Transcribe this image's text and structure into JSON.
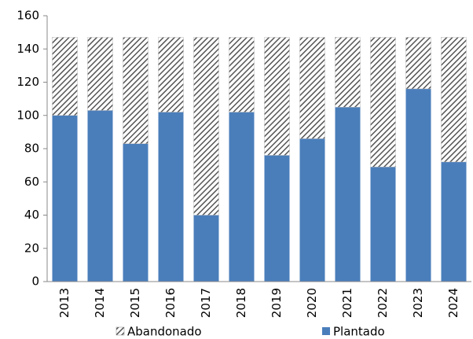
{
  "chart_data": {
    "type": "stacked_bar",
    "categories": [
      "2013",
      "2014",
      "2015",
      "2016",
      "2017",
      "2018",
      "2019",
      "2020",
      "2021",
      "2022",
      "2023",
      "2024"
    ],
    "series": [
      {
        "name": "Plantado",
        "color": "#4a7ebb",
        "values": [
          100,
          103,
          83,
          102,
          40,
          102,
          76,
          86,
          105,
          69,
          116,
          72
        ]
      },
      {
        "name": "Abandonado",
        "color": "#555555",
        "pattern": "hatch",
        "values": [
          47,
          44,
          64,
          45,
          107,
          45,
          71,
          61,
          42,
          78,
          31,
          75
        ]
      }
    ],
    "ylim": [
      0,
      160
    ],
    "yticks": [
      0,
      20,
      40,
      60,
      80,
      100,
      120,
      140,
      160
    ],
    "grid": false
  }
}
